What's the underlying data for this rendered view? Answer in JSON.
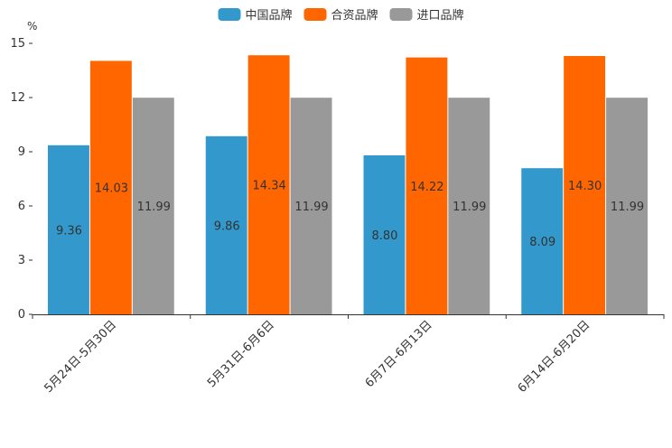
{
  "chart_data": {
    "type": "bar",
    "title": "",
    "xlabel": "",
    "ylabel": "%",
    "ylim": [
      0,
      15
    ],
    "yticks": [
      0,
      3,
      6,
      9,
      12,
      15
    ],
    "grid": false,
    "legend_position": "top-center",
    "categories": [
      "5月24日-5月30日",
      "5月31日-6月6日",
      "6月7日-6月13日",
      "6月14日-6月20日"
    ],
    "series": [
      {
        "name": "中国品牌",
        "color": "#3399cc",
        "values": [
          9.36,
          9.86,
          8.8,
          8.09
        ],
        "labels": [
          "9.36",
          "9.86",
          "8.80",
          "8.09"
        ]
      },
      {
        "name": "合资品牌",
        "color": "#ff6600",
        "values": [
          14.03,
          14.34,
          14.22,
          14.3
        ],
        "labels": [
          "14.03",
          "14.34",
          "14.22",
          "14.30"
        ]
      },
      {
        "name": "进口品牌",
        "color": "#999999",
        "values": [
          11.99,
          11.99,
          11.99,
          11.99
        ],
        "labels": [
          "11.99",
          "11.99",
          "11.99",
          "11.99"
        ]
      }
    ]
  }
}
